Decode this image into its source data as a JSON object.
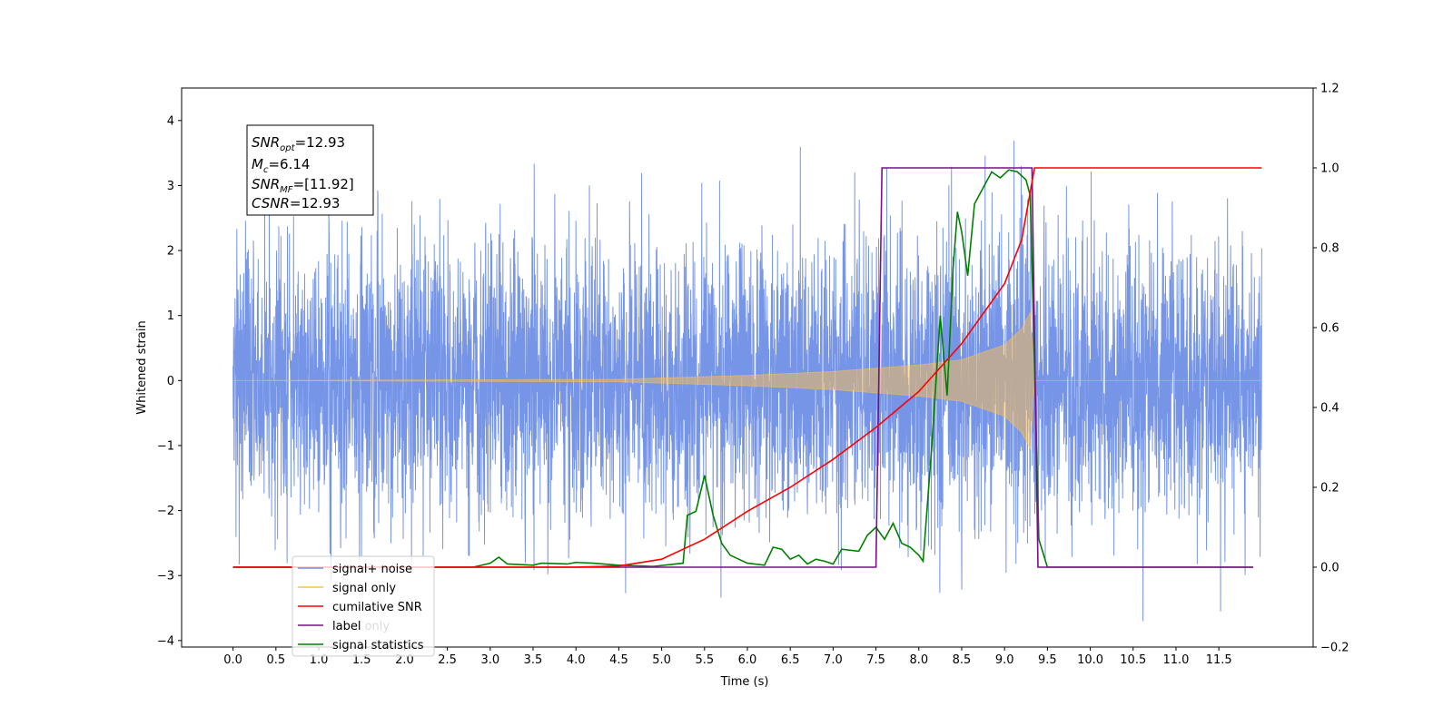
{
  "chart_data": {
    "type": "line",
    "xlabel": "Time (s)",
    "ylabel": "Whitened strain",
    "xlim": [
      -0.6,
      12.6
    ],
    "ylim": [
      -4.1,
      4.5
    ],
    "y2lim": [
      -0.2,
      1.2
    ],
    "x_ticks": [
      "0.0",
      "0.5",
      "1.0",
      "1.5",
      "2.0",
      "2.5",
      "3.0",
      "3.5",
      "4.0",
      "4.5",
      "5.0",
      "5.5",
      "6.0",
      "6.5",
      "7.0",
      "7.5",
      "8.0",
      "8.5",
      "9.0",
      "9.5",
      "10.0",
      "10.5",
      "11.0",
      "11.5"
    ],
    "y_ticks": [
      "−4",
      "−3",
      "−2",
      "−1",
      "0",
      "1",
      "2",
      "3",
      "4"
    ],
    "y2_ticks": [
      "−0.2",
      "0.0",
      "0.2",
      "0.4",
      "0.6",
      "0.8",
      "1.0",
      "1.2"
    ],
    "annotation": {
      "snr_opt": "=12.93",
      "mc": "=6.14",
      "snr_mf": "=[11.92]",
      "csnr": "=12.93"
    },
    "legend": {
      "placement": "lower-left",
      "entries": [
        "signal+ noise",
        "signal only",
        "cumilative SNR",
        "label",
        "label only",
        "signal statistics"
      ]
    },
    "colors": {
      "signal_noise": "#6f8fe6",
      "signal_only": "#ffc04d",
      "cumulative_snr": "#ff0000",
      "label": "#7b0f8a",
      "signal_statistics": "#008000"
    },
    "series": [
      {
        "name": "signal+ noise",
        "axis": "left",
        "description": "whitened noise, roughly Gaussian around 0, visible range -3.7 to 4.1",
        "range": [
          -3.7,
          4.1
        ],
        "x_range": [
          0.0,
          12.0
        ]
      },
      {
        "name": "signal only",
        "axis": "left",
        "description": "chirp envelope",
        "envelope": [
          {
            "x": 0.0,
            "y": 0.0
          },
          {
            "x": 4.5,
            "y": 0.02
          },
          {
            "x": 6.0,
            "y": 0.08
          },
          {
            "x": 7.0,
            "y": 0.14
          },
          {
            "x": 8.0,
            "y": 0.24
          },
          {
            "x": 8.5,
            "y": 0.32
          },
          {
            "x": 9.0,
            "y": 0.55
          },
          {
            "x": 9.2,
            "y": 0.8
          },
          {
            "x": 9.3,
            "y": 1.05
          },
          {
            "x": 9.35,
            "y": 0.0
          },
          {
            "x": 12.0,
            "y": 0.0
          }
        ]
      },
      {
        "name": "cumilative SNR",
        "axis": "right",
        "points": [
          {
            "x": 0.0,
            "y": 0.0
          },
          {
            "x": 4.0,
            "y": 0.0
          },
          {
            "x": 4.5,
            "y": 0.003
          },
          {
            "x": 5.0,
            "y": 0.02
          },
          {
            "x": 5.5,
            "y": 0.07
          },
          {
            "x": 6.0,
            "y": 0.14
          },
          {
            "x": 6.5,
            "y": 0.2
          },
          {
            "x": 7.0,
            "y": 0.27
          },
          {
            "x": 7.5,
            "y": 0.35
          },
          {
            "x": 8.0,
            "y": 0.44
          },
          {
            "x": 8.5,
            "y": 0.56
          },
          {
            "x": 9.0,
            "y": 0.71
          },
          {
            "x": 9.2,
            "y": 0.82
          },
          {
            "x": 9.35,
            "y": 1.0
          },
          {
            "x": 12.0,
            "y": 1.0
          }
        ]
      },
      {
        "name": "label",
        "axis": "right",
        "points": [
          {
            "x": 0.0,
            "y": 0.0
          },
          {
            "x": 7.5,
            "y": 0.0
          },
          {
            "x": 7.57,
            "y": 1.0
          },
          {
            "x": 9.32,
            "y": 1.0
          },
          {
            "x": 9.39,
            "y": 0.0
          },
          {
            "x": 11.9,
            "y": 0.0
          }
        ]
      },
      {
        "name": "signal statistics",
        "axis": "right",
        "points": [
          {
            "x": 0.0,
            "y": 0.0
          },
          {
            "x": 2.8,
            "y": 0.0
          },
          {
            "x": 3.0,
            "y": 0.01
          },
          {
            "x": 3.1,
            "y": 0.025
          },
          {
            "x": 3.2,
            "y": 0.008
          },
          {
            "x": 3.5,
            "y": 0.005
          },
          {
            "x": 3.6,
            "y": 0.01
          },
          {
            "x": 3.9,
            "y": 0.008
          },
          {
            "x": 4.0,
            "y": 0.012
          },
          {
            "x": 4.2,
            "y": 0.01
          },
          {
            "x": 4.5,
            "y": 0.005
          },
          {
            "x": 4.9,
            "y": 0.002
          },
          {
            "x": 5.25,
            "y": 0.01
          },
          {
            "x": 5.3,
            "y": 0.13
          },
          {
            "x": 5.4,
            "y": 0.14
          },
          {
            "x": 5.5,
            "y": 0.23
          },
          {
            "x": 5.6,
            "y": 0.13
          },
          {
            "x": 5.7,
            "y": 0.06
          },
          {
            "x": 5.8,
            "y": 0.03
          },
          {
            "x": 6.0,
            "y": 0.01
          },
          {
            "x": 6.2,
            "y": 0.005
          },
          {
            "x": 6.3,
            "y": 0.05
          },
          {
            "x": 6.4,
            "y": 0.045
          },
          {
            "x": 6.5,
            "y": 0.02
          },
          {
            "x": 6.6,
            "y": 0.03
          },
          {
            "x": 6.7,
            "y": 0.008
          },
          {
            "x": 6.8,
            "y": 0.02
          },
          {
            "x": 6.9,
            "y": 0.015
          },
          {
            "x": 7.0,
            "y": 0.008
          },
          {
            "x": 7.1,
            "y": 0.045
          },
          {
            "x": 7.3,
            "y": 0.04
          },
          {
            "x": 7.4,
            "y": 0.08
          },
          {
            "x": 7.5,
            "y": 0.1
          },
          {
            "x": 7.6,
            "y": 0.07
          },
          {
            "x": 7.7,
            "y": 0.11
          },
          {
            "x": 7.8,
            "y": 0.06
          },
          {
            "x": 7.9,
            "y": 0.05
          },
          {
            "x": 8.0,
            "y": 0.03
          },
          {
            "x": 8.05,
            "y": 0.015
          },
          {
            "x": 8.15,
            "y": 0.3
          },
          {
            "x": 8.25,
            "y": 0.63
          },
          {
            "x": 8.33,
            "y": 0.43
          },
          {
            "x": 8.4,
            "y": 0.75
          },
          {
            "x": 8.45,
            "y": 0.89
          },
          {
            "x": 8.5,
            "y": 0.84
          },
          {
            "x": 8.57,
            "y": 0.73
          },
          {
            "x": 8.65,
            "y": 0.91
          },
          {
            "x": 8.75,
            "y": 0.95
          },
          {
            "x": 8.85,
            "y": 0.99
          },
          {
            "x": 8.95,
            "y": 0.975
          },
          {
            "x": 9.05,
            "y": 0.995
          },
          {
            "x": 9.15,
            "y": 0.99
          },
          {
            "x": 9.25,
            "y": 0.97
          },
          {
            "x": 9.3,
            "y": 0.93
          },
          {
            "x": 9.4,
            "y": 0.07
          },
          {
            "x": 9.5,
            "y": 0.0
          },
          {
            "x": 11.9,
            "y": 0.0
          }
        ]
      }
    ]
  }
}
